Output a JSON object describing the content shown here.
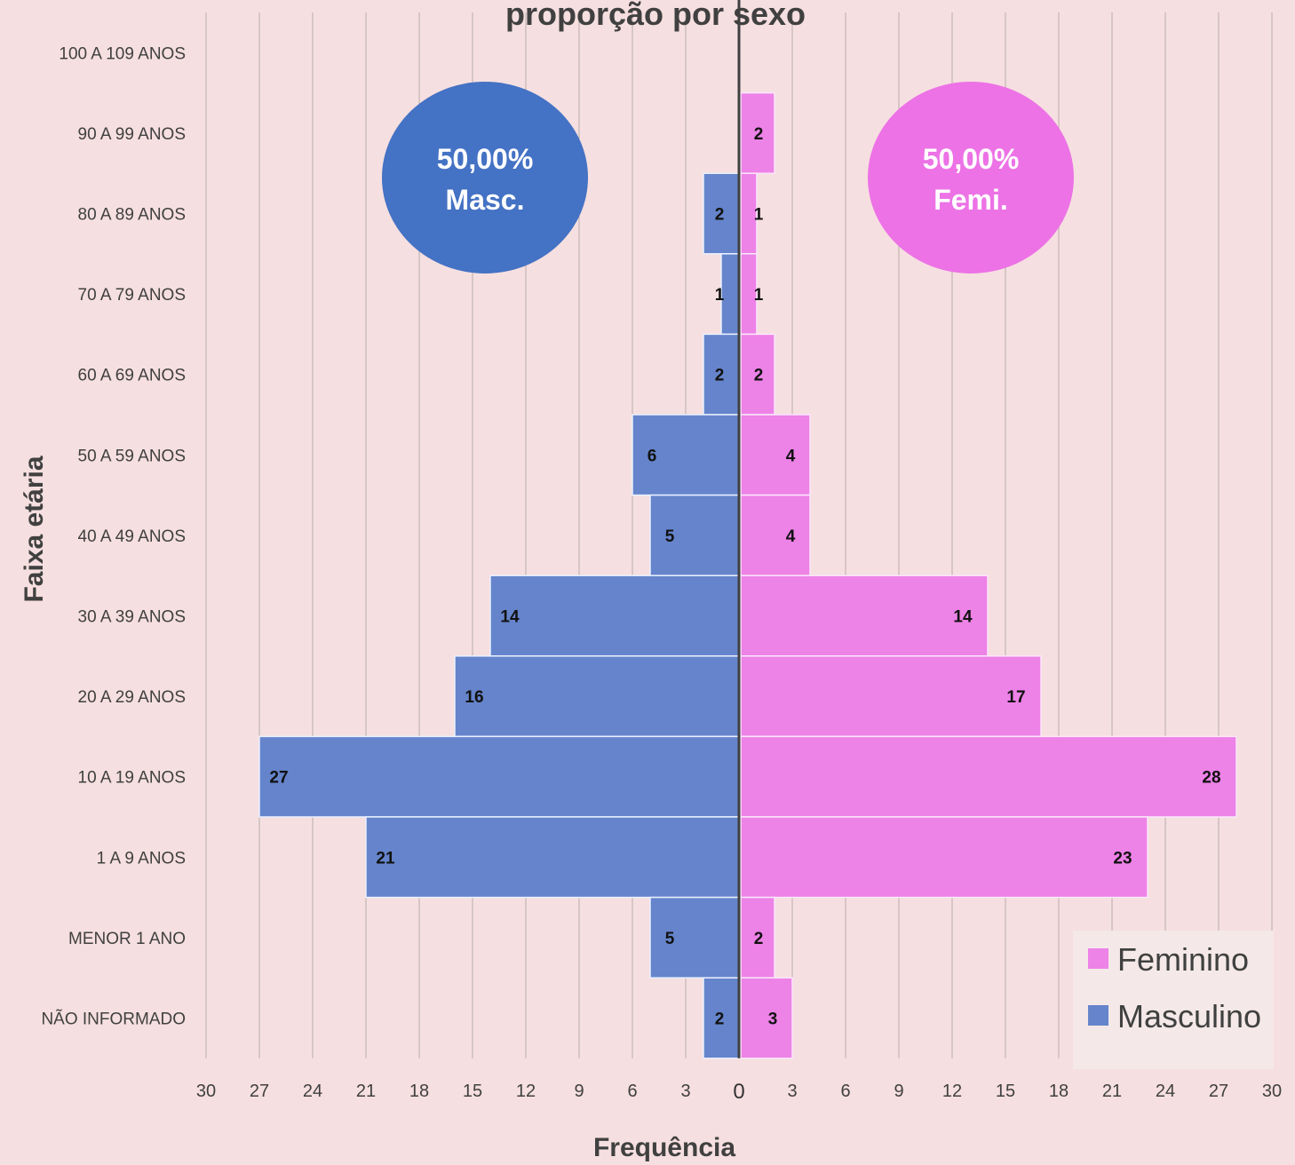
{
  "chart_data": {
    "type": "bar",
    "orientation": "horizontal-population-pyramid",
    "title": "proporção por sexo",
    "xlabel": "Frequência",
    "ylabel": "Faixa etária",
    "categories": [
      "100 A 109 ANOS",
      "90 A 99 ANOS",
      "80 A 89 ANOS",
      "70 A 79 ANOS",
      "60 A 69 ANOS",
      "50 A 59 ANOS",
      "40 A 49 ANOS",
      "30 A 39 ANOS",
      "20 A 29 ANOS",
      "10 A 19 ANOS",
      "1 A 9 ANOS",
      "MENOR 1 ANO",
      "NÃO INFORMADO"
    ],
    "series": [
      {
        "name": "Masculino",
        "color": "#4472c4",
        "values": [
          null,
          null,
          2,
          1,
          2,
          6,
          5,
          14,
          16,
          27,
          21,
          5,
          2
        ]
      },
      {
        "name": "Feminino",
        "color": "#ec72e6",
        "values": [
          null,
          2,
          1,
          1,
          2,
          4,
          4,
          14,
          17,
          28,
          23,
          2,
          3
        ]
      }
    ],
    "xlim": [
      -30,
      30
    ],
    "xticks": [
      "30",
      "27",
      "24",
      "21",
      "18",
      "15",
      "12",
      "9",
      "6",
      "3",
      "0",
      "3",
      "6",
      "9",
      "12",
      "15",
      "18",
      "21",
      "24",
      "27",
      "30"
    ],
    "grid": true,
    "legend": "bottom-right",
    "annotations": [
      {
        "series": "Masculino",
        "lines": [
          "50,00%",
          "Masc."
        ]
      },
      {
        "series": "Feminino",
        "lines": [
          "50,00%",
          "Femi."
        ]
      }
    ]
  }
}
